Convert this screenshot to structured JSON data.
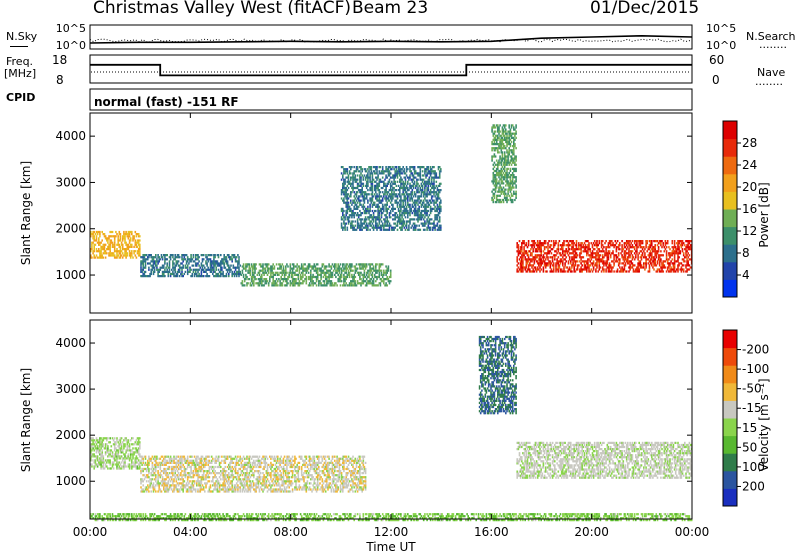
{
  "header": {
    "station": "Christmas Valley West (fitACF)",
    "beam": "Beam 23",
    "date": "01/Dec/2015"
  },
  "top_panels": {
    "nsky_label": "N.Sky",
    "nsearch_label": "N.Search",
    "noise_ticks": [
      "10^5",
      "10^0"
    ],
    "freq_label_line1": "Freq.",
    "freq_label_line2": "[MHz]",
    "freq_ticks": [
      "18",
      "8"
    ],
    "nave_label": "Nave",
    "nave_ticks": [
      "60",
      "0"
    ],
    "cpid_label": "CPID",
    "cpid_text": "normal (fast) -151 RF",
    "dotted_legend": "........"
  },
  "power_panel": {
    "ylabel": "Slant Range [km]",
    "yticks": [
      "1000",
      "2000",
      "3000",
      "4000"
    ],
    "colorbar_label": "Power [dB]",
    "colorbar_ticks": [
      "4",
      "8",
      "12",
      "16",
      "20",
      "24",
      "28"
    ]
  },
  "velocity_panel": {
    "ylabel": "Slant Range [km]",
    "yticks": [
      "1000",
      "2000",
      "3000",
      "4000"
    ],
    "colorbar_label": "Velocity [m s⁻¹]",
    "colorbar_ticks": [
      "200",
      "100",
      "50",
      "15",
      "-15",
      "-50",
      "-100",
      "-200"
    ]
  },
  "xaxis": {
    "label": "Time UT",
    "ticks": [
      "00:00",
      "04:00",
      "08:00",
      "12:00",
      "16:00",
      "20:00",
      "00:00"
    ]
  },
  "colors": {
    "power_scale": [
      "#0033ee",
      "#2244aa",
      "#2c6f8c",
      "#3c8f6a",
      "#6fae55",
      "#e8c020",
      "#f2a01c",
      "#ee6a10",
      "#e82a0a",
      "#dd0000"
    ],
    "velocity_scale": [
      "#1a2fbf",
      "#2b55a0",
      "#2f7c4a",
      "#58b830",
      "#8ad44c",
      "#c8c8c0",
      "#f0b838",
      "#f08a18",
      "#ee4a0a",
      "#e80000"
    ],
    "ground_scatter": "#c8c8c0"
  },
  "chart_data": [
    {
      "type": "line",
      "title": "N.Sky / N.Search noise",
      "x_range_hours": [
        0,
        24
      ],
      "ylim_labels": [
        "10^0",
        "10^5"
      ],
      "series": [
        {
          "name": "N.Sky",
          "x": [
            0,
            2,
            4,
            6,
            8,
            10,
            12,
            14,
            16,
            18,
            20,
            22,
            24
          ],
          "y_relative": [
            0.25,
            0.28,
            0.28,
            0.3,
            0.32,
            0.3,
            0.32,
            0.3,
            0.32,
            0.45,
            0.5,
            0.55,
            0.5
          ]
        }
      ]
    },
    {
      "type": "line",
      "title": "Freq. [MHz] / Nave",
      "x_range_hours": [
        0,
        24
      ],
      "ylim": [
        8,
        18
      ],
      "series": [
        {
          "name": "Freq.",
          "x": [
            0,
            2.8,
            2.8,
            15,
            15,
            24
          ],
          "y": [
            14.5,
            14.5,
            10.7,
            10.7,
            14.5,
            14.5
          ]
        }
      ]
    },
    {
      "type": "heatmap",
      "title": "Power [dB]",
      "x_range": [
        "00:00",
        "00:00"
      ],
      "ylim": [
        180,
        4500
      ],
      "zlim": [
        0,
        30
      ],
      "features": [
        {
          "from_hour": 0,
          "to_hour": 2,
          "range_km": [
            1400,
            2000
          ],
          "power_db": 18
        },
        {
          "from_hour": 2,
          "to_hour": 6,
          "range_km": [
            1000,
            1500
          ],
          "power_db": 8
        },
        {
          "from_hour": 6,
          "to_hour": 12,
          "range_km": [
            800,
            1300
          ],
          "power_db": 12
        },
        {
          "from_hour": 10,
          "to_hour": 14,
          "range_km": [
            2000,
            3400
          ],
          "power_db": 8
        },
        {
          "from_hour": 16,
          "to_hour": 17,
          "range_km": [
            2600,
            4300
          ],
          "power_db": 12
        },
        {
          "from_hour": 17,
          "to_hour": 24,
          "range_km": [
            1100,
            1800
          ],
          "power_db": 26
        }
      ]
    },
    {
      "type": "heatmap",
      "title": "Velocity [m s⁻¹]",
      "x_range": [
        "00:00",
        "00:00"
      ],
      "ylim": [
        180,
        4500
      ],
      "zlim": [
        -250,
        250
      ],
      "features": [
        {
          "from_hour": 0,
          "to_hour": 2,
          "range_km": [
            1300,
            2000
          ],
          "velocity": -10
        },
        {
          "from_hour": 2,
          "to_hour": 11,
          "range_km": [
            800,
            1600
          ],
          "velocity": 30
        },
        {
          "from_hour": 15.5,
          "to_hour": 17,
          "range_km": [
            2500,
            4200
          ],
          "velocity": -150
        },
        {
          "from_hour": 17,
          "to_hour": 24,
          "range_km": [
            1100,
            1900
          ],
          "velocity": 0
        },
        {
          "from_hour": 0,
          "to_hour": 24,
          "range_km": [
            180,
            350
          ],
          "velocity": -40
        }
      ]
    }
  ]
}
